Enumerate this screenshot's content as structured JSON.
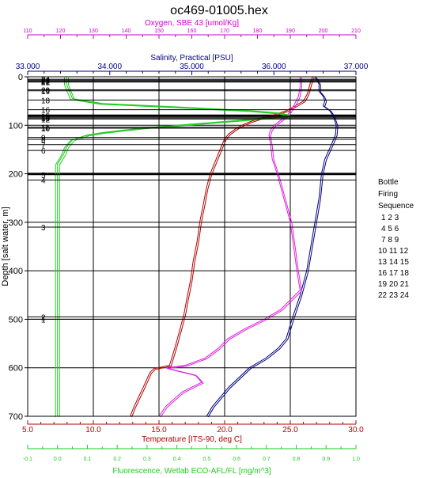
{
  "chart_data": {
    "type": "line",
    "title": "oc469-01005.hex",
    "y_axis": {
      "label": "Depth [salt water, m]",
      "range": [
        0,
        700
      ],
      "inverted": true,
      "ticks": [
        0,
        100,
        200,
        300,
        400,
        500,
        600,
        700
      ],
      "color": "#000000"
    },
    "x_axes": [
      {
        "id": "oxygen",
        "label": "Oxygen, SBE 43 [umol/Kg]",
        "position": "top-outer",
        "range": [
          110,
          210
        ],
        "ticks": [
          "110",
          "120",
          "130",
          "140",
          "150",
          "160",
          "170",
          "180",
          "190",
          "200",
          "210"
        ],
        "color": "#cc00cc"
      },
      {
        "id": "salinity",
        "label": "Salinity, Practical [PSU]",
        "position": "top-inner",
        "range": [
          33,
          37
        ],
        "ticks": [
          "33.000",
          "34.000",
          "35.000",
          "36.000",
          "37.000"
        ],
        "color": "#000080"
      },
      {
        "id": "temperature",
        "label": "Temperature [ITS-90, deg C]",
        "position": "bottom-inner",
        "range": [
          5,
          30
        ],
        "ticks": [
          "5.0",
          "10.0",
          "15.0",
          "20.0",
          "25.0",
          "30.0"
        ],
        "color": "#b00000"
      },
      {
        "id": "fluorescence",
        "label": "Fluorescence, Wetlab ECO-AFL/FL [mg/m^3]",
        "position": "bottom-outer",
        "range": [
          -0.1,
          1.0
        ],
        "ticks": [
          "-0.1",
          "0.0",
          "0.1",
          "0.2",
          "0.3",
          "0.4",
          "0.5",
          "0.6",
          "0.7",
          "0.8",
          "0.9",
          "1.0"
        ],
        "color": "#22cc22"
      }
    ],
    "series": [
      {
        "name": "Temperature",
        "axis": "temperature",
        "color": "#b00000",
        "depth": [
          0,
          15,
          35,
          50,
          58,
          70,
          78,
          85,
          92,
          100,
          108,
          118,
          128,
          140,
          160,
          180,
          200,
          230,
          260,
          300,
          340,
          380,
          420,
          460,
          490,
          520,
          560,
          595,
          602,
          610,
          640,
          680,
          700
        ],
        "values": [
          26.7,
          26.5,
          26.3,
          26.0,
          25.5,
          24.7,
          23.8,
          22.8,
          22.0,
          21.3,
          20.8,
          20.3,
          20.0,
          19.8,
          19.5,
          19.2,
          18.9,
          18.6,
          18.4,
          18.1,
          17.9,
          17.6,
          17.4,
          17.1,
          16.9,
          16.6,
          16.2,
          15.8,
          14.6,
          14.3,
          13.8,
          13.1,
          12.8
        ]
      },
      {
        "name": "Salinity",
        "axis": "salinity",
        "color": "#000080",
        "depth": [
          0,
          15,
          30,
          40,
          50,
          60,
          70,
          80,
          90,
          100,
          120,
          140,
          170,
          200,
          250,
          300,
          350,
          400,
          450,
          500,
          540,
          560,
          580,
          600,
          640,
          680,
          700
        ],
        "values": [
          36.5,
          36.55,
          36.55,
          36.6,
          36.62,
          36.6,
          36.68,
          36.72,
          36.74,
          36.76,
          36.75,
          36.7,
          36.62,
          36.58,
          36.55,
          36.5,
          36.45,
          36.4,
          36.32,
          36.22,
          36.15,
          36.05,
          35.9,
          35.7,
          35.45,
          35.25,
          35.18
        ]
      },
      {
        "name": "Oxygen",
        "axis": "oxygen",
        "color": "#dd22dd",
        "depth": [
          0,
          20,
          40,
          60,
          70,
          80,
          90,
          100,
          110,
          120,
          140,
          170,
          200,
          250,
          300,
          350,
          400,
          440,
          460,
          480,
          500,
          520,
          540,
          560,
          580,
          595,
          600,
          605,
          615,
          630,
          650,
          680,
          700
        ],
        "values": [
          193,
          193,
          192.5,
          191,
          190,
          189,
          187,
          185,
          184,
          183.5,
          184,
          184.5,
          186,
          188,
          190,
          191,
          192,
          193,
          190,
          187,
          182,
          176,
          171,
          168,
          164,
          158,
          152,
          155,
          161,
          163,
          157,
          152,
          150
        ]
      },
      {
        "name": "Fluorescence",
        "axis": "fluorescence",
        "color": "#22cc22",
        "depth": [
          0,
          15,
          30,
          45,
          55,
          62,
          70,
          75,
          80,
          85,
          90,
          95,
          100,
          105,
          110,
          115,
          120,
          130,
          145,
          160,
          180,
          220,
          300,
          400,
          500,
          600,
          700
        ],
        "values": [
          0.03,
          0.03,
          0.04,
          0.05,
          0.15,
          0.4,
          0.65,
          0.75,
          0.78,
          0.7,
          0.6,
          0.5,
          0.4,
          0.3,
          0.22,
          0.15,
          0.1,
          0.05,
          0.03,
          0.02,
          0.0,
          0.0,
          0.0,
          0.0,
          0.0,
          0.0,
          0.0
        ]
      }
    ],
    "bottle_marks": [
      {
        "depth": 5,
        "label": "24"
      },
      {
        "depth": 7,
        "label": "23"
      },
      {
        "depth": 9,
        "label": "22"
      },
      {
        "depth": 11,
        "label": "21"
      },
      {
        "depth": 27,
        "label": "20"
      },
      {
        "depth": 29,
        "label": "19"
      },
      {
        "depth": 48,
        "label": "18"
      },
      {
        "depth": 68,
        "label": "16"
      },
      {
        "depth": 81,
        "label": "15"
      },
      {
        "depth": 83,
        "label": "14"
      },
      {
        "depth": 85,
        "label": "13"
      },
      {
        "depth": 87,
        "label": "12"
      },
      {
        "depth": 104,
        "label": "11"
      },
      {
        "depth": 106,
        "label": "10"
      },
      {
        "depth": 125,
        "label": "9"
      },
      {
        "depth": 129,
        "label": "8"
      },
      {
        "depth": 140,
        "label": "7"
      },
      {
        "depth": 152,
        "label": "6"
      },
      {
        "depth": 202,
        "label": "5"
      },
      {
        "depth": 213,
        "label": "4"
      },
      {
        "depth": 310,
        "label": "3"
      },
      {
        "depth": 495,
        "label": "2"
      },
      {
        "depth": 500,
        "label": "1"
      }
    ],
    "thick_lines_depth": [
      80,
      200
    ],
    "grid": true
  },
  "legend": {
    "title_lines": [
      "Bottle",
      "Firing",
      "Sequence"
    ],
    "rows": [
      "1  2  3",
      "4  5  6",
      "7  8  9",
      "10 11 12",
      "13 14 15",
      "16 17 18",
      "19 20 21",
      "22 23 24"
    ]
  }
}
